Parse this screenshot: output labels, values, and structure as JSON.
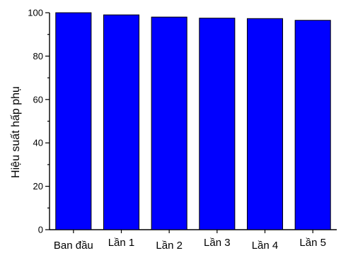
{
  "chart_data": {
    "type": "bar",
    "title": "",
    "xlabel": "",
    "ylabel": "Hiệu suất hấp phụ",
    "categories": [
      "Ban đầu",
      "Lần 1",
      "Lần 2",
      "Lần 3",
      "Lần 4",
      "Lần 5"
    ],
    "values": [
      100,
      99,
      98,
      97.5,
      97.3,
      96.5
    ],
    "ylim": [
      0,
      100
    ],
    "yticks": [
      0,
      20,
      40,
      60,
      80,
      100
    ],
    "bar_color": "#0000ff",
    "grid": false,
    "legend": "none"
  }
}
